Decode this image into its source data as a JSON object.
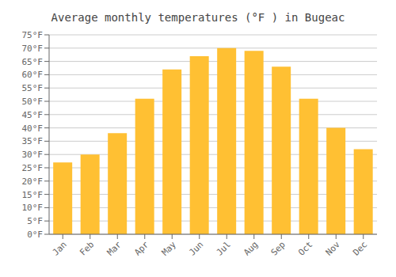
{
  "chart_data": {
    "type": "bar",
    "title": "Average monthly temperatures (°F ) in Bugeac",
    "categories": [
      "Jan",
      "Feb",
      "Mar",
      "Apr",
      "May",
      "Jun",
      "Jul",
      "Aug",
      "Sep",
      "Oct",
      "Nov",
      "Dec"
    ],
    "values": [
      27,
      30,
      38,
      51,
      62,
      67,
      70,
      69,
      63,
      51,
      40,
      32
    ],
    "color": "#FFC033",
    "ylim": [
      0,
      75
    ],
    "yticks": [
      {
        "value": 0,
        "label": "0°F"
      },
      {
        "value": 5,
        "label": "5°F"
      },
      {
        "value": 10,
        "label": "10°F"
      },
      {
        "value": 15,
        "label": "15°F"
      },
      {
        "value": 20,
        "label": "20°F"
      },
      {
        "value": 25,
        "label": "25°F"
      },
      {
        "value": 30,
        "label": "30°F"
      },
      {
        "value": 35,
        "label": "35°F"
      },
      {
        "value": 40,
        "label": "40°F"
      },
      {
        "value": 45,
        "label": "45°F"
      },
      {
        "value": 50,
        "label": "50°F"
      },
      {
        "value": 55,
        "label": "55°F"
      },
      {
        "value": 60,
        "label": "60°F"
      },
      {
        "value": 65,
        "label": "65°F"
      },
      {
        "value": 70,
        "label": "70°F"
      },
      {
        "value": 75,
        "label": "75°F"
      }
    ],
    "grid": true
  }
}
